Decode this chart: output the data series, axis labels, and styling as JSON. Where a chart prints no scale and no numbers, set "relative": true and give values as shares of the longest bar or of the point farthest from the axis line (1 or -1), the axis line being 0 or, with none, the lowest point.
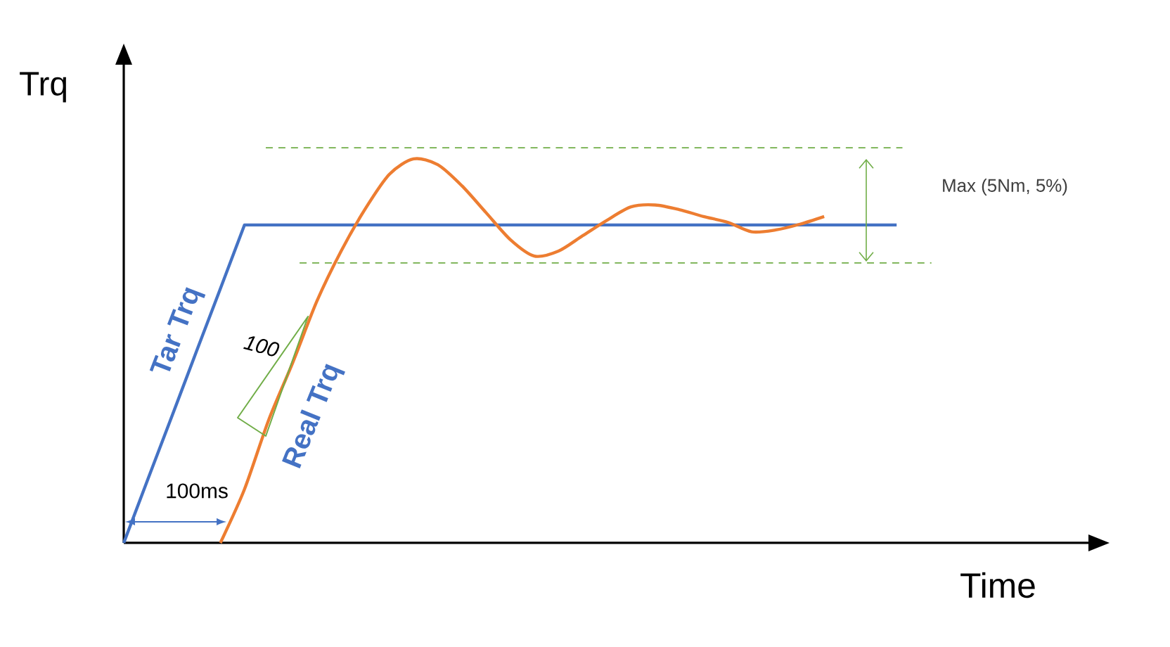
{
  "chart_data": {
    "type": "line",
    "relative": true,
    "xlabel": "Time",
    "ylabel": "Trq",
    "categories": [
      null,
      null,
      null,
      null,
      null,
      null,
      null,
      null,
      null,
      null,
      null,
      null,
      null,
      null,
      null,
      null,
      null,
      null,
      null,
      null,
      null,
      null,
      null,
      null,
      null,
      null,
      null,
      null,
      null,
      null,
      null,
      null,
      null
    ],
    "series": [
      {
        "name": "Tar Trq",
        "color": "#4472c4",
        "values": [
          0,
          0.166,
          0.331,
          0.497,
          0.662,
          0.828,
          0.828,
          0.828,
          0.828,
          0.828,
          0.828,
          0.828,
          0.828,
          0.828,
          0.828,
          0.828,
          0.828,
          0.828,
          0.828,
          0.828,
          0.828,
          0.828,
          0.828,
          0.828,
          0.828,
          0.828,
          0.828,
          0.828,
          0.828,
          0.828,
          0.828,
          0.828,
          0.828
        ]
      },
      {
        "name": "Real Trq",
        "color": "#ed7d31",
        "values": [
          null,
          null,
          null,
          null,
          0,
          0.14,
          0.32,
          0.47,
          0.63,
          0.76,
          0.87,
          0.96,
          1.0,
          0.985,
          0.93,
          0.86,
          0.79,
          0.747,
          0.76,
          0.8,
          0.84,
          0.875,
          0.88,
          0.868,
          0.85,
          0.835,
          0.81,
          0.815,
          0.83,
          0.85,
          null,
          null,
          null
        ]
      }
    ],
    "ref_lines": [
      {
        "axis": "y",
        "value": 1.029,
        "color": "#70ad47",
        "line_style": "dashed"
      },
      {
        "axis": "y",
        "value": 0.729,
        "color": "#70ad47",
        "line_style": "dashed"
      }
    ],
    "annotations": [
      "100ms",
      "100",
      "Max (5Nm, 5%)"
    ]
  }
}
